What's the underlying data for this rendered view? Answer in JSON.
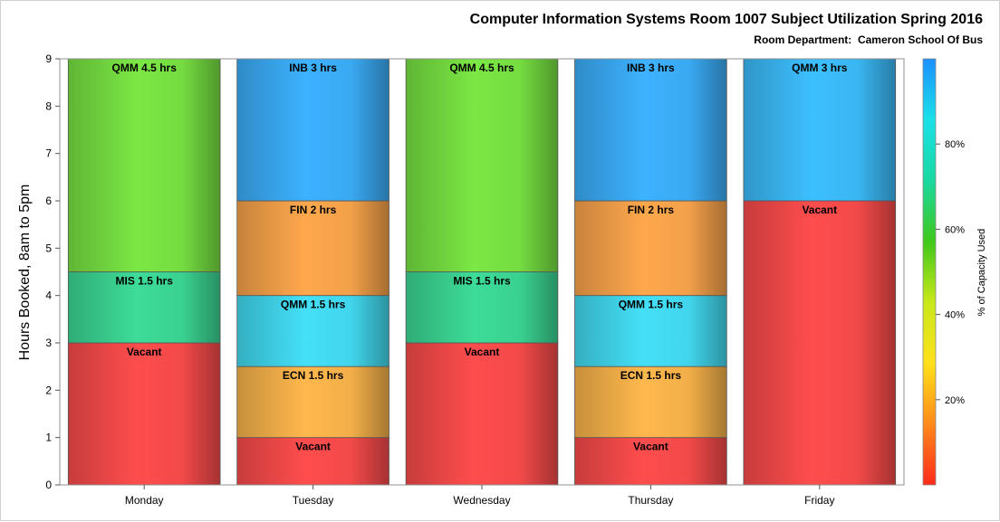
{
  "chart_data": {
    "type": "bar",
    "stacked": true,
    "title": "Computer Information Systems Room 1007 Subject Utilization Spring 2016",
    "subtitle": "Room Department:  Cameron School Of Bus",
    "xlabel": "",
    "ylabel": "Hours Booked, 8am to 5pm",
    "ylim": [
      0,
      9
    ],
    "yticks": [
      "0",
      "1",
      "2",
      "3",
      "4",
      "5",
      "6",
      "7",
      "8",
      "9"
    ],
    "categories": [
      "Monday",
      "Tuesday",
      "Wednesday",
      "Thursday",
      "Friday"
    ],
    "segments": [
      [
        {
          "label": "Vacant",
          "hours": 3,
          "color": "#ff4d4d"
        },
        {
          "label": "MIS 1.5 hrs",
          "hours": 1.5,
          "color": "#3ddc98"
        },
        {
          "label": "QMM 4.5 hrs",
          "hours": 4.5,
          "color": "#7be844"
        }
      ],
      [
        {
          "label": "Vacant",
          "hours": 1,
          "color": "#ff4d4d"
        },
        {
          "label": "ECN 1.5 hrs",
          "hours": 1.5,
          "color": "#ffb84d"
        },
        {
          "label": "QMM 1.5 hrs",
          "hours": 1.5,
          "color": "#44e0f8"
        },
        {
          "label": "FIN 2 hrs",
          "hours": 2,
          "color": "#ffa84d"
        },
        {
          "label": "INB 3 hrs",
          "hours": 3,
          "color": "#3db2ff"
        }
      ],
      [
        {
          "label": "Vacant",
          "hours": 3,
          "color": "#ff4d4d"
        },
        {
          "label": "MIS 1.5 hrs",
          "hours": 1.5,
          "color": "#3ddc98"
        },
        {
          "label": "QMM 4.5 hrs",
          "hours": 4.5,
          "color": "#7be844"
        }
      ],
      [
        {
          "label": "Vacant",
          "hours": 1,
          "color": "#ff4d4d"
        },
        {
          "label": "ECN 1.5 hrs",
          "hours": 1.5,
          "color": "#ffb84d"
        },
        {
          "label": "QMM 1.5 hrs",
          "hours": 1.5,
          "color": "#44e0f8"
        },
        {
          "label": "FIN 2 hrs",
          "hours": 2,
          "color": "#ffa84d"
        },
        {
          "label": "INB 3 hrs",
          "hours": 3,
          "color": "#3db2ff"
        }
      ],
      [
        {
          "label": "Vacant",
          "hours": 6,
          "color": "#ff4d4d"
        },
        {
          "label": "QMM 3 hrs",
          "hours": 3,
          "color": "#3dc0ff"
        }
      ]
    ],
    "colorbar": {
      "label": "% of Capacity Used",
      "ticks": [
        "20%",
        "40%",
        "60%",
        "80%"
      ],
      "tick_values": [
        20,
        40,
        60,
        80
      ],
      "range": [
        0,
        100
      ],
      "colors": [
        "#ff2a1a",
        "#ff8a1a",
        "#ffe11a",
        "#c8e81a",
        "#3fc81a",
        "#1ad8a0",
        "#1ae0e8",
        "#1a90ff"
      ]
    },
    "grid": false,
    "legend": "colorbar-right"
  }
}
